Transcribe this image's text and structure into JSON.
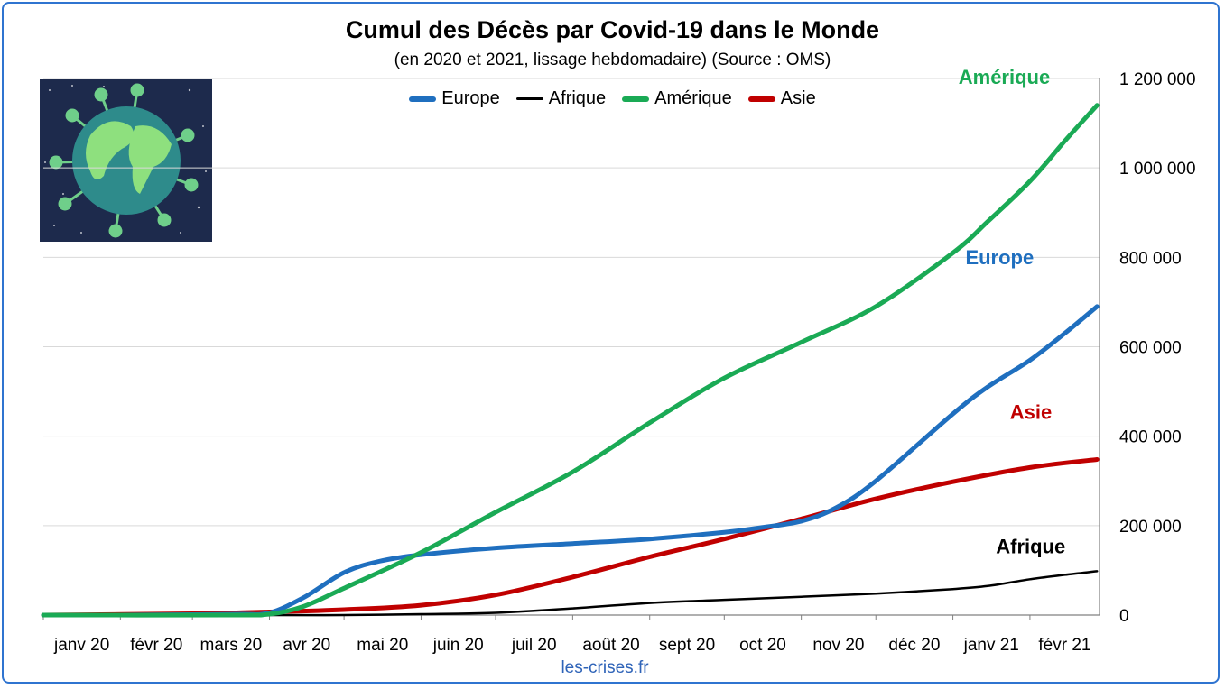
{
  "title": "Cumul des Décès par Covid-19 dans le Monde",
  "subtitle": "(en 2020 et 2021, lissage hebdomadaire) (Source : OMS)",
  "source_label": "les-crises.fr",
  "colors": {
    "europe": "#1f6fbf",
    "afrique": "#000000",
    "amerique": "#1aaa55",
    "asie": "#c00000",
    "frame": "#2f74d0",
    "grid": "#d9d9d9"
  },
  "image_icon": "covid-globe-icon",
  "chart_data": {
    "type": "line",
    "title": "Cumul des Décès par Covid-19 dans le Monde",
    "ylim": [
      0,
      1200000
    ],
    "y_ticks": [
      0,
      200000,
      400000,
      600000,
      800000,
      1000000,
      1200000
    ],
    "y_tick_labels": [
      "0",
      "200 000",
      "400 000",
      "600 000",
      "800 000",
      "1 000 000",
      "1 200 000"
    ],
    "y_axis_side": "right",
    "x_tick_labels": [
      "janv 20",
      "févr 20",
      "mars 20",
      "avr 20",
      "mai 20",
      "juin 20",
      "juil 20",
      "août 20",
      "sept 20",
      "oct 20",
      "nov 20",
      "déc 20",
      "janv 21",
      "févr 21"
    ],
    "x_ticks": [
      "2020-01-01",
      "2020-02-01",
      "2020-03-01",
      "2020-04-01",
      "2020-05-01",
      "2020-06-01",
      "2020-07-01",
      "2020-08-01",
      "2020-09-01",
      "2020-10-01",
      "2020-11-01",
      "2020-12-01",
      "2021-01-01",
      "2021-02-01"
    ],
    "x_range": [
      "2020-01-01",
      "2021-02-28"
    ],
    "legend_position": "top-center",
    "grid": true,
    "series": [
      {
        "name": "Europe",
        "key": "europe",
        "end_label": "Europe",
        "x": [
          "2020-01-01",
          "2020-02-01",
          "2020-03-01",
          "2020-03-20",
          "2020-04-01",
          "2020-04-15",
          "2020-05-01",
          "2020-05-15",
          "2020-06-01",
          "2020-07-01",
          "2020-08-01",
          "2020-09-01",
          "2020-10-01",
          "2020-10-15",
          "2020-11-01",
          "2020-11-15",
          "2020-12-01",
          "2021-01-01",
          "2021-01-15",
          "2021-02-01",
          "2021-02-15",
          "2021-02-28"
        ],
        "values": [
          0,
          0,
          1000,
          2000,
          5000,
          40000,
          95000,
          120000,
          135000,
          150000,
          160000,
          170000,
          185000,
          195000,
          210000,
          240000,
          300000,
          450000,
          510000,
          570000,
          630000,
          690000
        ]
      },
      {
        "name": "Afrique",
        "key": "afrique",
        "end_label": "Afrique",
        "x": [
          "2020-01-01",
          "2020-04-01",
          "2020-05-01",
          "2020-06-01",
          "2020-07-01",
          "2020-08-01",
          "2020-09-01",
          "2020-10-01",
          "2020-11-01",
          "2020-12-01",
          "2021-01-01",
          "2021-01-15",
          "2021-02-01",
          "2021-02-15",
          "2021-02-28"
        ],
        "values": [
          0,
          0,
          0,
          2000,
          5000,
          15000,
          27000,
          34000,
          41000,
          48000,
          58000,
          65000,
          80000,
          90000,
          98000
        ]
      },
      {
        "name": "Amérique",
        "key": "amerique",
        "end_label": "Amérique",
        "x": [
          "2020-01-01",
          "2020-03-15",
          "2020-04-01",
          "2020-04-15",
          "2020-05-01",
          "2020-06-01",
          "2020-07-01",
          "2020-08-01",
          "2020-09-01",
          "2020-10-01",
          "2020-11-01",
          "2020-12-01",
          "2021-01-01",
          "2021-01-15",
          "2021-02-01",
          "2021-02-15",
          "2021-02-28"
        ],
        "values": [
          0,
          0,
          2000,
          20000,
          60000,
          140000,
          230000,
          320000,
          430000,
          530000,
          610000,
          690000,
          810000,
          880000,
          970000,
          1060000,
          1140000
        ]
      },
      {
        "name": "Asie",
        "key": "asie",
        "end_label": "Asie",
        "x": [
          "2020-01-01",
          "2020-03-01",
          "2020-04-01",
          "2020-05-01",
          "2020-06-01",
          "2020-07-01",
          "2020-08-01",
          "2020-09-01",
          "2020-10-01",
          "2020-11-01",
          "2020-12-01",
          "2021-01-01",
          "2021-02-01",
          "2021-02-28"
        ],
        "values": [
          0,
          3000,
          7000,
          12000,
          22000,
          45000,
          85000,
          130000,
          170000,
          215000,
          260000,
          298000,
          330000,
          348000
        ]
      }
    ]
  }
}
